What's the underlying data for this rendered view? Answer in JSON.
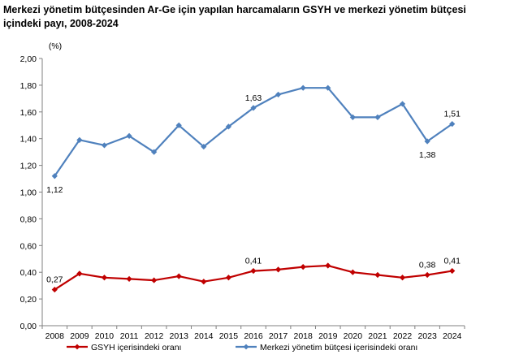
{
  "title": "Merkezi yönetim bütçesinden Ar-Ge için yapılan harcamaların GSYH ve merkezi yönetim bütçesi içindeki payı, 2008-2024",
  "chart_data": {
    "type": "line",
    "title": "Merkezi yönetim bütçesinden Ar-Ge için yapılan harcamaların GSYH ve merkezi yönetim bütçesi içindeki payı, 2008-2024",
    "ylabel": "(%)",
    "ylim": [
      0,
      2
    ],
    "yticks": [
      "0,00",
      "0,20",
      "0,40",
      "0,60",
      "0,80",
      "1,00",
      "1,20",
      "1,40",
      "1,60",
      "1,80",
      "2,00"
    ],
    "x": [
      "2008",
      "2009",
      "2010",
      "2011",
      "2012",
      "2013",
      "2014",
      "2015",
      "2016",
      "2017",
      "2018",
      "2019",
      "2020",
      "2021",
      "2022",
      "2023",
      "2024"
    ],
    "series": [
      {
        "name": "GSYH içerisindeki oranı",
        "color": "#c00000",
        "values": [
          0.27,
          0.39,
          0.36,
          0.35,
          0.34,
          0.37,
          0.33,
          0.36,
          0.41,
          0.42,
          0.44,
          0.45,
          0.4,
          0.38,
          0.36,
          0.38,
          0.41
        ],
        "labels": [
          {
            "index": 0,
            "text": "0,27",
            "pos": "above"
          },
          {
            "index": 8,
            "text": "0,41",
            "pos": "above"
          },
          {
            "index": 15,
            "text": "0,38",
            "pos": "above"
          },
          {
            "index": 16,
            "text": "0,41",
            "pos": "above"
          }
        ]
      },
      {
        "name": "Merkezi yönetim bütçesi içerisindeki oranı",
        "color": "#4f81bd",
        "values": [
          1.12,
          1.39,
          1.35,
          1.42,
          1.3,
          1.5,
          1.34,
          1.49,
          1.63,
          1.73,
          1.78,
          1.78,
          1.56,
          1.56,
          1.66,
          1.38,
          1.51
        ],
        "labels": [
          {
            "index": 0,
            "text": "1,12",
            "pos": "below"
          },
          {
            "index": 8,
            "text": "1,63",
            "pos": "above"
          },
          {
            "index": 15,
            "text": "1,38",
            "pos": "below"
          },
          {
            "index": 16,
            "text": "1,51",
            "pos": "above"
          }
        ]
      }
    ],
    "legend": "bottom",
    "grid": false
  }
}
